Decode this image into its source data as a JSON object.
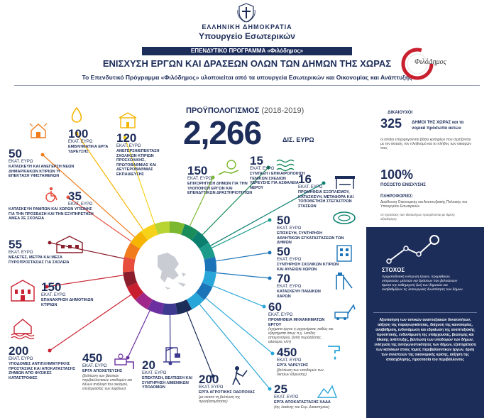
{
  "header": {
    "country": "ΕΛΛΗΝΙΚΗ ΔΗΜΟΚΡΑΤΙΑ",
    "ministry": "Υπουργείο Εσωτερικών",
    "program_bar": "ΕΠΕΝΔΥΤΙΚΟ ΠΡΟΓΡΑΜΜΑ «Φιλόδημος»",
    "title": "ΕΝΙΣΧΥΣΗ ΕΡΓΩΝ ΚΑΙ ΔΡΑΣΕΩΝ ΟΛΩΝ ΤΩΝ ΔΗΜΩΝ ΤΗΣ ΧΩΡΑΣ",
    "subtitle": "Το Επενδυτικό Πρόγραμμα «Φιλόδημος» υλοποιείται από τα υπουργεία Εσωτερικών και Οικονομίας και Ανάπτυξης",
    "logo_text": "ΦιλόΔημος"
  },
  "budget": {
    "label": "ΠΡΟΫΠΟΛΟΓΙΣΜΟΣ",
    "years": "(2018-2019)",
    "amount": "2,266",
    "unit": "ΔΙΣ. ΕΥΡΩ"
  },
  "items": [
    {
      "num": "100",
      "unit": "ΕΚΑΤ. ΕΥΡΩ",
      "desc": "ΕΜΒΛΗΜΑΤΙΚΑ ΕΡΓΑ ΥΔΡΕΥΣΗΣ",
      "note": ""
    },
    {
      "num": "120",
      "unit": "ΕΚΑΤ. ΕΥΡΩ",
      "desc": "ΑΝΕΓΕΡΣΗ/ΕΠΕΚΤΑΣΗ ΣΧΟΛΙΚΩΝ ΚΤΙΡΙΩΝ ΠΡΟΣΧΟΛΙΚΗΣ, ΠΡΩΤΟΒΑΘΜΙΑΣ ΚΑΙ ΔΕΥΤΕΡΟΒΑΘΜΙΑΣ ΕΚΠΑΙΔΕΥΣΗΣ",
      "note": ""
    },
    {
      "num": "50",
      "unit": "ΕΚΑΤ. ΕΥΡΩ",
      "desc": "ΚΑΤΑΣΚΕΥΗ ΚΑΙ ΑΝΕΓΕΡΣΗ ΝΕΩΝ ΔΗΜΑΡΧΙΑΚΩΝ ΚΤΙΡΙΩΝ Ή ΕΠΕΚΤΑΣΗ ΥΦΙΣΤΑΜΕΝΩΝ",
      "note": ""
    },
    {
      "num": "35",
      "unit": "ΕΚΑΤ. ΕΥΡΩ",
      "desc": "ΚΑΤΑΣΚΕΥΗ ΡΑΜΠΩΝ ΚΑΙ ΧΩΡΩΝ ΥΓΙΕΙΝΗΣ ΓΙΑ ΤΗΝ ΠΡΟΣΒΑΣΗ ΚΑΙ ΤΗΝ ΕΞΥΠΗΡΕΤΗΣΗ ΑΜΕΑ ΣΕ ΣΧΟΛΕΙΑ",
      "note": ""
    },
    {
      "num": "55",
      "unit": "ΕΚΑΤ. ΕΥΡΩ",
      "desc": "ΜΕΛΕΤΕΣ, ΜΕΤΡΑ ΚΑΙ ΜΕΣΑ ΠΥΡΟΠΡΟΣΤΑΣΙΑΣ ΓΙΑ ΣΧΟΛΕΙΑ",
      "note": ""
    },
    {
      "num": "150",
      "unit": "ΕΚΑΤ. ΕΥΡΩ",
      "desc": "ΕΠΑΝΑΧΡΗΣΗ ΔΗΜΟΤΙΚΩΝ ΚΤΙΡΙΩΝ",
      "note": ""
    },
    {
      "num": "200",
      "unit": "ΕΚΑΤ. ΕΥΡΩ",
      "desc": "ΥΠΟΔΟΜΕΣ ΑΝΤΙΠΛΗΜΜΥΡΙΚΗΣ ΠΡΟΣΤΑΣΙΑΣ ΚΑΙ ΑΠΟΚΑΤΑΣΤΑΣΗΣ ΖΗΜΙΩΝ ΑΠΟ ΦΥΣΙΚΕΣ ΚΑΤΑΣΤΡΟΦΕΣ",
      "note": ""
    },
    {
      "num": "450",
      "unit": "ΕΚΑΤ. ΕΥΡΩ",
      "desc": "ΕΡΓΑ ΑΠΟΧΕΤΕΥΣΗΣ",
      "note": "(βελτίωση των βασικών περιβαλλοντικών υποδομών και άλλων ανάλογα του οικισμού, επεξεργασίας των λυμάτων)"
    },
    {
      "num": "20",
      "unit": "ΕΚΑΤ. ΕΥΡΩ",
      "desc": "ΕΠΕΚΤΑΣΗ, ΒΕΛΤΙΩΣΗ ΚΑΙ ΣΥΝΤΗΡΗΣΗ ΛΙΜΕΝΙΚΩΝ ΥΠΟΔΟΜΩΝ",
      "note": ""
    },
    {
      "num": "200",
      "unit": "ΕΚΑΤ. ΕΥΡΩ",
      "desc": "ΕΡΓΑ ΑΓΡΟΤΙΚΗΣ ΟΔΟΠΟΙΙΑΣ",
      "note": "(με σκοπό τη βελτίωση της προσβασιμότητας)"
    },
    {
      "num": "150",
      "unit": "ΕΚΑΤ. ΕΥΡΩ",
      "desc": "ΕΠΙΧΟΡΗΓΗΣΗ ΔΗΜΩΝ ΓΙΑ ΤΗΝ ΥΛΟΠΟΙΗΣΗ ΕΡΓΩΝ ΚΑΙ ΕΠΕΝΔΥΤΙΚΩΝ ΔΡΑΣΤΗΡΙΟΤΗΤΩΝ",
      "note": ""
    },
    {
      "num": "15",
      "unit": "ΕΚΑΤ. ΕΥΡΩ",
      "desc": "ΣΥΝΤΑΞΗ / ΕΠΙΚΑΙΡΟΠΟΙΗΣΗ ΓΕΝΙΚΩΝ ΣΧΕΔΙΩΝ ΥΔΡΕΥΣΗΣ ΓΙΑ ΑΣΦΑΛΕΙΑ ΝΕΡΟΥ",
      "note": ""
    },
    {
      "num": "16",
      "unit": "ΕΚΑΤ. ΕΥΡΩ",
      "desc": "ΠΡΟΜΗΘΕΙΑ ΕΞΟΠΛΙΣΜΟΥ, ΚΑΤΑΣΚΕΥΗ, ΜΕΤΑΦΟΡΑ ΚΑΙ ΤΟΠΟΘΕΤΗΣΗ ΣΤΕΓΑΣΤΡΩΝ ΣΤΑΣΕΩΝ",
      "note": ""
    },
    {
      "num": "50",
      "unit": "ΕΚΑΤ. ΕΥΡΩ",
      "desc": "ΕΠΙΣΚΕΥΗ, ΣΥΝΤΗΡΗΣΗ ΑΘΛΗΤΙΚΩΝ ΕΓΚΑΤΑΣΤΑΣΕΩΝ ΤΩΝ ΔΗΜΩΝ",
      "note": ""
    },
    {
      "num": "50",
      "unit": "ΕΚΑΤ. ΕΥΡΩ",
      "desc": "ΣΥΝΤΗΡΗΣΗ ΣΧΟΛΙΚΩΝ ΚΤΙΡΙΩΝ ΚΑΙ ΑΥΛΕΙΩΝ ΧΩΡΩΝ",
      "note": ""
    },
    {
      "num": "70",
      "unit": "ΕΚΑΤ. ΕΥΡΩ",
      "desc": "ΚΑΤΑΣΚΕΥΗ ΠΑΙΔΙΚΩΝ ΧΑΡΩΝ",
      "note": ""
    },
    {
      "num": "60",
      "unit": "ΕΚΑΤ. ΕΥΡΩ",
      "desc": "ΠΡΟΜΗΘΕΙΑ ΜΗΧΑΝΗΜΑΤΩΝ ΕΡΓΟΥ",
      "note": "(οχήματα έργου ή μηχανήματα, καθώς και εξαρτήματα όπως π.χ. λεπίδες αποχιονισμού, βυτία πυρόσβεσης, αλατιέρες κλπ)"
    },
    {
      "num": "450",
      "unit": "ΕΚΑΤ. ΕΥΡΩ",
      "desc": "ΕΡΓΑ ΥΔΡΕΥΣΗΣ",
      "note": "(βελτίωση των υποδομών των δικτύων ύδρευσης)"
    },
    {
      "num": "25",
      "unit": "ΕΚΑΤ. ΕΥΡΩ",
      "desc": "ΕΡΓΑ ΑΠΟΚΑΤΑΣΤΑΣΗΣ ΧΑΔΑ",
      "note": "(της λεκάνης του Ευρ. Δικαστηρίου)"
    }
  ],
  "side": {
    "label1": "ΔΙΚΑΙΟΥΧΟΙ",
    "num1": "325",
    "text1": "ΔΗΜΟΙ ΤΗΣ ΧΩΡΑΣ και τα νομικά πρόσωπα αυτών",
    "small1": "οι οποίοι επιχορηγούνται βάσει κριτηρίων που σχετίζονται με την έκταση, τον πληθυσμό και το πλήθος των οικισμών τους",
    "num2": "100%",
    "label2": "ΠΟΣΟΣΤΟ ΕΝΙΣΧΥΣΗΣ",
    "label3": "ΠΛΗΡΟΦΟΡΙΕΣ:",
    "small3": "Διεύθυνση Οικονομικής και Αναπτυξιακής Πολιτικής του Υπουργείου Εσωτερικών",
    "tiny3": "Οι προτάσεις των δικαιούχων προκρίνονται με άμεση αξιολόγηση",
    "stoxos": "ΣΤΟΧΟΣ",
    "stoxos_text": "Χρηματοδοτική ενίσχυση έργων, προμηθειών, υπηρεσιών, μελετών και δράσεων που βελτιώνουν άμεσα την καθημερινή ζωή των δημοτών και αναβαθμίζουν τις λειτουργικές δυνατότητες των δήμων",
    "goal": "Αξιοποίηση των τοπικών αναπτυξιακών δυνατοτήτων, αύξηση της παραγωγικότητας, διάχυση της καινοτομίας, αναβάθμιση, ενδυνάμωση και εδραίωση της αναπτυξιακής προοπτικής, ενδυνάμωση της υπάρχουσας, βιώσιμης και δίκαιης ανάπτυξης, βελτίωση των υποδομών των δήμων, ενίσχυση της ανταγωνιστικότητας των δήμων, εξυπηρέτηση των κατοίκων στους τομείς περιβαλλοντικών έργων, άρση των συνεπειών της οικονομικής κρίσης, αύξηση της απασχόλησης, προστασία του περιβάλλοντος"
  }
}
